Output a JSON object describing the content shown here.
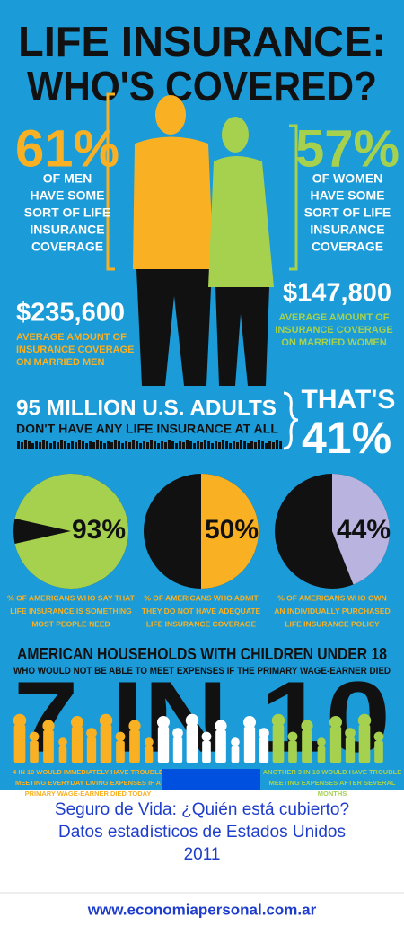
{
  "title": {
    "line1": "LIFE INSURANCE:",
    "line2": "WHO'S COVERED?"
  },
  "men": {
    "stat": "61%",
    "text": [
      "OF MEN",
      "HAVE SOME",
      "SORT OF LIFE",
      "INSURANCE",
      "COVERAGE"
    ],
    "amount": "$235,600",
    "amount_text": [
      "AVERAGE AMOUNT OF",
      "INSURANCE COVERAGE",
      "ON MARRIED MEN"
    ]
  },
  "women": {
    "stat": "57%",
    "text": [
      "OF WOMEN",
      "HAVE SOME",
      "SORT OF LIFE",
      "INSURANCE",
      "COVERAGE"
    ],
    "amount": "$147,800",
    "amount_text": [
      "AVERAGE AMOUNT OF",
      "INSURANCE COVERAGE",
      "ON MARRIED WOMEN"
    ]
  },
  "uninsured": {
    "headline": "95 MILLION U.S. ADULTS",
    "subline": "DON'T HAVE ANY LIFE INSURANCE AT ALL",
    "that": "THAT'S",
    "share": "41%"
  },
  "pies": [
    {
      "value": 93,
      "label": "93%",
      "caption": [
        "% OF AMERICANS WHO SAY THAT",
        "LIFE INSURANCE IS SOMETHING",
        "MOST PEOPLE NEED"
      ]
    },
    {
      "value": 50,
      "label": "50%",
      "caption": [
        "% OF AMERICANS WHO ADMIT",
        "THEY DO NOT HAVE ADEQUATE",
        "LIFE INSURANCE COVERAGE"
      ]
    },
    {
      "value": 44,
      "label": "44%",
      "caption": [
        "% OF AMERICANS WHO OWN",
        "AN INDIVIDUALLY PURCHASED",
        "LIFE INSURANCE POLICY"
      ]
    }
  ],
  "households": {
    "headline": "AMERICAN HOUSEHOLDS WITH CHILDREN UNDER 18",
    "subline": "WHO WOULD NOT BE ABLE TO MEET EXPENSES IF THE PRIMARY WAGE-EARNER DIED",
    "big": "7 IN 10",
    "left_note": [
      "4 IN 10 WOULD IMMEDIATELY HAVE TROUBLE",
      "MEETING EVERYDAY LIVING EXPENSES IF A",
      "PRIMARY WAGE-EARNER DIED TODAY"
    ],
    "right_note": [
      "ANOTHER 3 IN 10 WOULD HAVE TROUBLE",
      "MEETING EXPENSES AFTER SEVERAL",
      "MONTHS"
    ]
  },
  "caption": [
    "Seguro de Vida: ¿Quién está cubierto?",
    "Datos estadísticos de Estados Unidos",
    "2011"
  ],
  "url": "www.economiapersonal.com.ar"
}
